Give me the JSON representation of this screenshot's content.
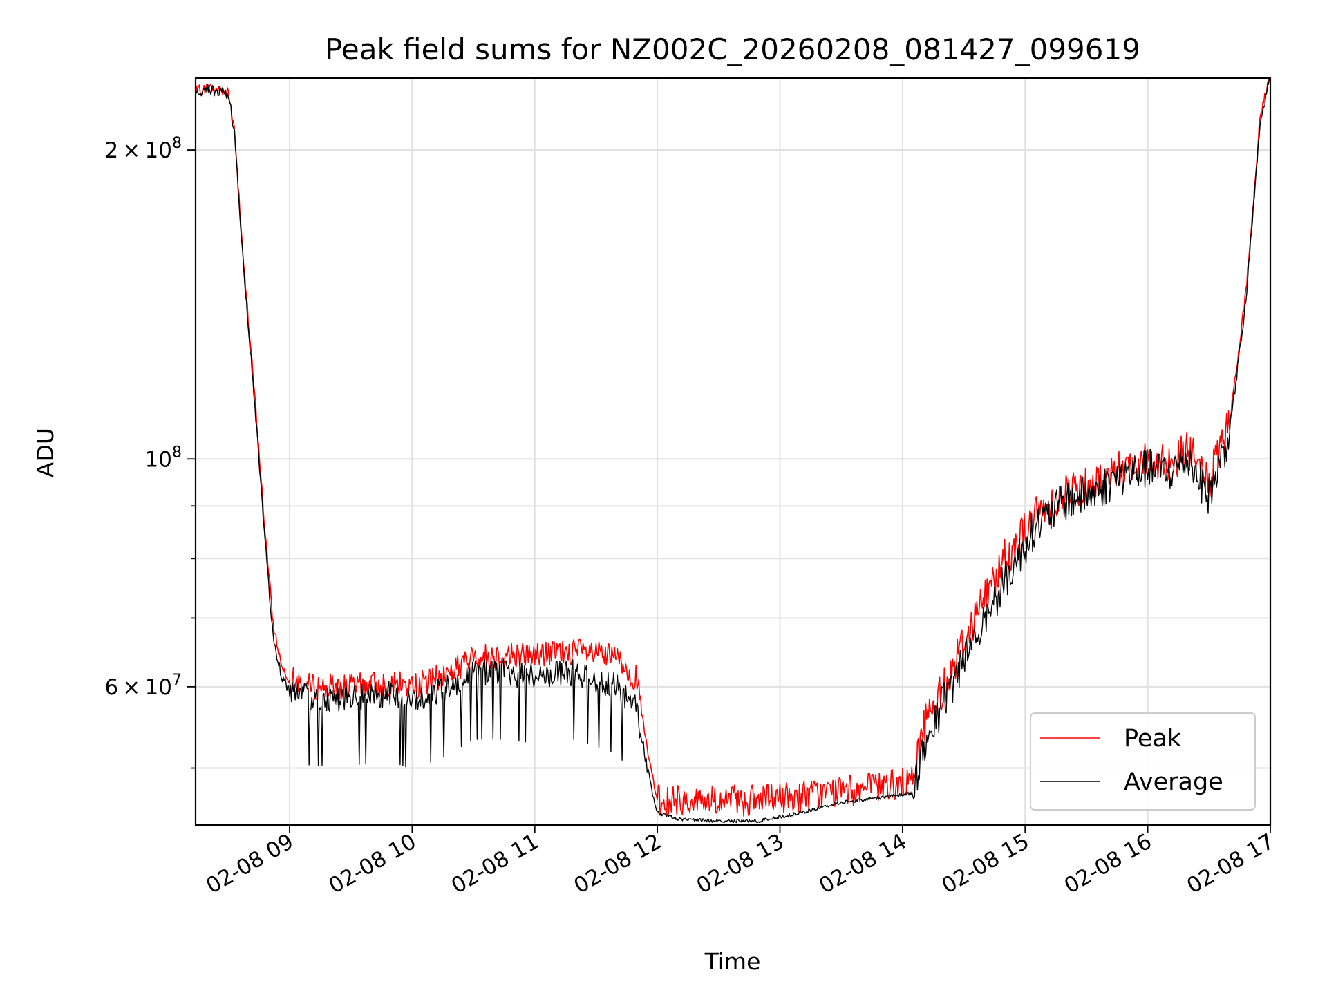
{
  "chart_data": {
    "type": "line",
    "title": "Peak field sums for NZ002C_20260208_081427_099619",
    "xlabel": "Time",
    "ylabel": "ADU",
    "yscale": "log",
    "xlim": [
      "2026-02-08 08:14",
      "2026-02-08 17:00"
    ],
    "ylim": [
      44000000,
      235000000
    ],
    "grid": true,
    "legend_position": "lower-right",
    "x_ticks": [
      "02-08 09",
      "02-08 10",
      "02-08 11",
      "02-08 12",
      "02-08 13",
      "02-08 14",
      "02-08 15",
      "02-08 16",
      "02-08 17"
    ],
    "y_major_ticks": [
      {
        "value": 60000000,
        "mantissa": "6",
        "exponent": "7"
      },
      {
        "value": 100000000,
        "mantissa": "",
        "exponent": "8"
      },
      {
        "value": 200000000,
        "mantissa": "2",
        "exponent": "8"
      }
    ],
    "y_minor_ticks": [
      50000000,
      70000000,
      80000000,
      90000000
    ],
    "times_label_units": "hours",
    "series": [
      {
        "name": "Peak",
        "color": "#ff0000",
        "x": [
          "08:14",
          "08:20",
          "08:30",
          "08:33",
          "08:38",
          "08:43",
          "08:48",
          "08:52",
          "08:56",
          "09:00",
          "09:10",
          "09:30",
          "09:50",
          "10:00",
          "10:15",
          "10:30",
          "10:45",
          "11:00",
          "11:20",
          "11:40",
          "11:50",
          "11:55",
          "12:00",
          "12:10",
          "12:30",
          "12:50",
          "13:10",
          "13:30",
          "13:50",
          "14:05",
          "14:10",
          "14:20",
          "14:35",
          "14:50",
          "15:05",
          "15:20",
          "15:35",
          "15:45",
          "16:00",
          "16:10",
          "16:20",
          "16:30",
          "16:40",
          "16:48",
          "16:55",
          "17:00"
        ],
        "values": [
          228000000,
          230000000,
          228000000,
          210000000,
          150000000,
          115000000,
          85000000,
          69000000,
          63000000,
          61000000,
          60000000,
          60000000,
          60500000,
          60000000,
          61500000,
          64000000,
          64500000,
          64500000,
          65000000,
          64000000,
          61000000,
          52000000,
          46500000,
          46500000,
          46500000,
          46500000,
          47000000,
          47500000,
          48000000,
          48500000,
          55000000,
          60000000,
          70000000,
          80000000,
          88000000,
          93000000,
          95000000,
          98000000,
          100000000,
          99000000,
          102000000,
          95000000,
          108000000,
          145000000,
          215000000,
          238000000
        ]
      },
      {
        "name": "Average",
        "color": "#000000",
        "x": [
          "08:14",
          "08:20",
          "08:30",
          "08:33",
          "08:38",
          "08:43",
          "08:48",
          "08:52",
          "08:56",
          "09:00",
          "09:10",
          "09:30",
          "09:50",
          "10:00",
          "10:15",
          "10:30",
          "10:45",
          "11:00",
          "11:20",
          "11:40",
          "11:50",
          "11:55",
          "12:00",
          "12:10",
          "12:30",
          "12:50",
          "13:10",
          "13:30",
          "13:50",
          "14:05",
          "14:10",
          "14:20",
          "14:35",
          "14:50",
          "15:05",
          "15:20",
          "15:35",
          "15:45",
          "16:00",
          "16:10",
          "16:20",
          "16:30",
          "16:40",
          "16:48",
          "16:55",
          "17:00"
        ],
        "values": [
          227000000,
          229000000,
          227000000,
          208000000,
          148000000,
          113000000,
          83000000,
          67000000,
          61500000,
          59500000,
          58500000,
          58500000,
          59000000,
          58000000,
          59500000,
          62000000,
          62000000,
          61500000,
          62000000,
          60000000,
          57000000,
          50000000,
          45200000,
          44600000,
          44400000,
          44400000,
          45200000,
          46300000,
          46800000,
          47300000,
          52000000,
          58000000,
          67000000,
          76000000,
          86000000,
          91000000,
          93000000,
          96000000,
          98000000,
          97000000,
          100000000,
          92000000,
          106000000,
          142000000,
          212000000,
          236000000
        ]
      }
    ]
  }
}
